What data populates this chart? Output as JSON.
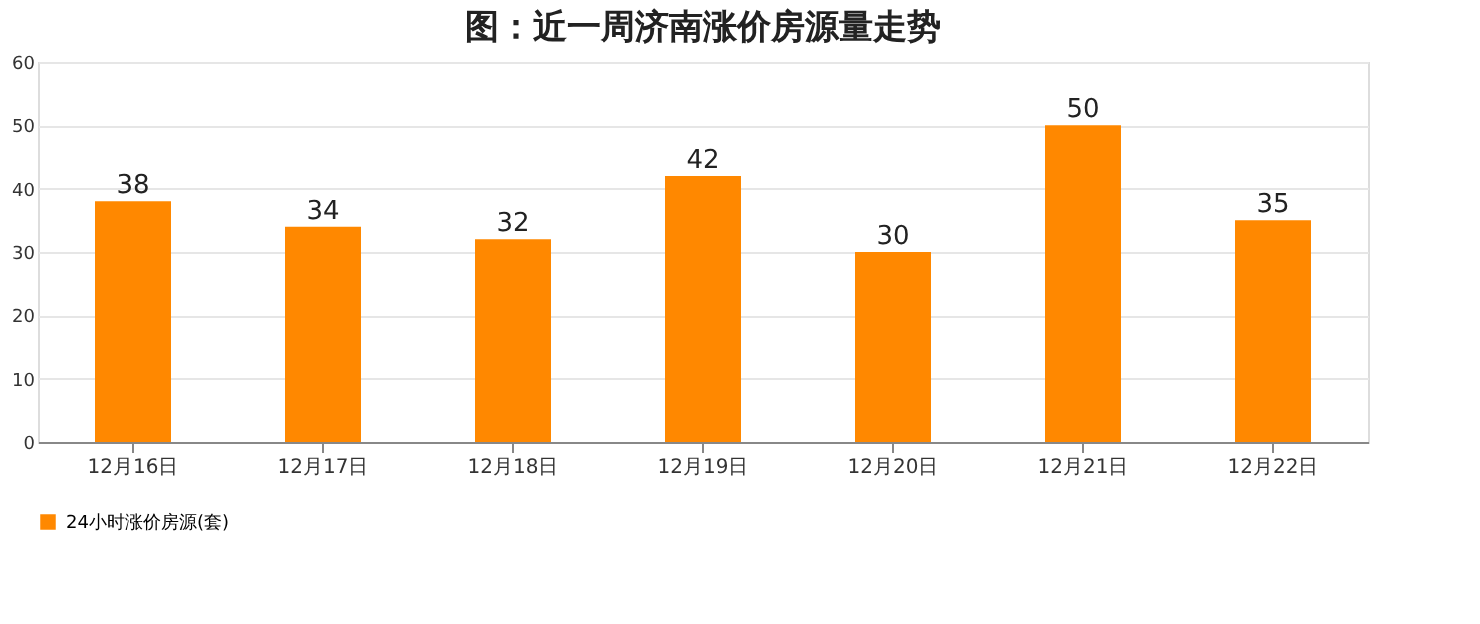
{
  "chart_data": {
    "type": "bar",
    "title": "图：近一周济南涨价房源量走势",
    "categories": [
      "12月16日",
      "12月17日",
      "12月18日",
      "12月19日",
      "12月20日",
      "12月21日",
      "12月22日"
    ],
    "series": [
      {
        "name": "24小时涨价房源(套)",
        "color": "#ff8800",
        "values": [
          38,
          34,
          32,
          42,
          30,
          50,
          35
        ]
      }
    ],
    "ylim": [
      0,
      60
    ],
    "yticks": [
      0,
      10,
      20,
      30,
      40,
      50,
      60
    ],
    "grid": "y",
    "legend": "bottom",
    "data_labels": true
  }
}
